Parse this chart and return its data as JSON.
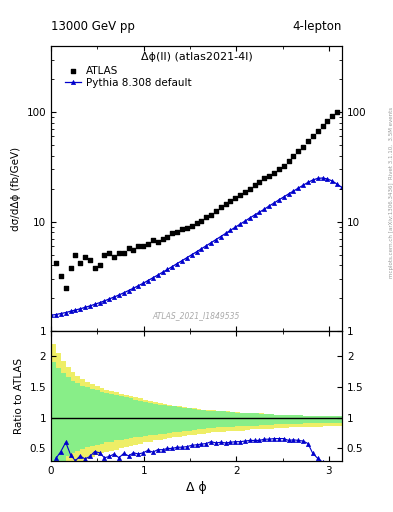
{
  "title_left": "13000 GeV pp",
  "title_right": "4-lepton",
  "subplot_title": "Δϕ(ll) (atlas2021-4l)",
  "watermark": "ATLAS_2021_I1849535",
  "right_label1": "Rivet 3.1.10,  3.5M events",
  "right_label2": "mcplots.cern.ch [arXiv:1306.3436]",
  "ylabel_main": "dσ/dΔϕ (fb/GeV)",
  "ylabel_ratio": "Ratio to ATLAS",
  "xlabel": "Δ ϕ",
  "xlim": [
    0,
    3.14159
  ],
  "ylim_main": [
    1.0,
    400
  ],
  "ylim_ratio": [
    0.3,
    2.4
  ],
  "atlas_x": [
    0.053,
    0.105,
    0.158,
    0.21,
    0.262,
    0.314,
    0.366,
    0.419,
    0.471,
    0.523,
    0.576,
    0.628,
    0.68,
    0.733,
    0.785,
    0.837,
    0.89,
    0.942,
    0.995,
    1.047,
    1.099,
    1.152,
    1.204,
    1.257,
    1.309,
    1.361,
    1.414,
    1.466,
    1.518,
    1.571,
    1.623,
    1.676,
    1.728,
    1.78,
    1.833,
    1.885,
    1.937,
    1.99,
    2.042,
    2.094,
    2.147,
    2.199,
    2.251,
    2.304,
    2.356,
    2.409,
    2.461,
    2.513,
    2.566,
    2.618,
    2.67,
    2.723,
    2.775,
    2.827,
    2.88,
    2.932,
    2.985,
    3.037,
    3.089
  ],
  "atlas_y": [
    4.2,
    3.2,
    2.5,
    3.8,
    5.0,
    4.2,
    4.8,
    4.5,
    3.8,
    4.0,
    5.0,
    5.2,
    4.8,
    5.2,
    5.2,
    5.8,
    5.5,
    6.0,
    6.0,
    6.2,
    6.8,
    6.5,
    7.0,
    7.2,
    7.8,
    8.0,
    8.5,
    8.8,
    9.2,
    9.8,
    10.2,
    11.0,
    11.5,
    12.5,
    13.5,
    14.5,
    15.5,
    16.5,
    17.5,
    18.8,
    20.0,
    21.5,
    23.0,
    25.0,
    26.0,
    28.0,
    30.0,
    32.0,
    36.0,
    40.0,
    44.0,
    48.0,
    54.0,
    60.0,
    67.0,
    74.0,
    82.0,
    92.0,
    100.0
  ],
  "pythia_x": [
    0.0,
    0.053,
    0.105,
    0.158,
    0.21,
    0.262,
    0.314,
    0.366,
    0.419,
    0.471,
    0.523,
    0.576,
    0.628,
    0.68,
    0.733,
    0.785,
    0.837,
    0.89,
    0.942,
    0.995,
    1.047,
    1.099,
    1.152,
    1.204,
    1.257,
    1.309,
    1.361,
    1.414,
    1.466,
    1.518,
    1.571,
    1.623,
    1.676,
    1.728,
    1.78,
    1.833,
    1.885,
    1.937,
    1.99,
    2.042,
    2.094,
    2.147,
    2.199,
    2.251,
    2.304,
    2.356,
    2.409,
    2.461,
    2.513,
    2.566,
    2.618,
    2.67,
    2.723,
    2.775,
    2.827,
    2.88,
    2.932,
    2.985,
    3.037,
    3.089,
    3.14159
  ],
  "pythia_y": [
    1.4,
    1.42,
    1.45,
    1.48,
    1.52,
    1.56,
    1.6,
    1.65,
    1.7,
    1.76,
    1.82,
    1.89,
    1.97,
    2.05,
    2.14,
    2.24,
    2.35,
    2.47,
    2.6,
    2.74,
    2.9,
    3.07,
    3.25,
    3.45,
    3.66,
    3.89,
    4.14,
    4.4,
    4.68,
    4.98,
    5.3,
    5.65,
    6.02,
    6.42,
    6.85,
    7.31,
    7.8,
    8.33,
    8.89,
    9.49,
    10.1,
    10.8,
    11.5,
    12.2,
    13.0,
    13.9,
    14.8,
    15.8,
    16.8,
    17.9,
    19.0,
    20.2,
    21.5,
    22.8,
    24.0,
    24.8,
    25.0,
    24.5,
    23.5,
    22.0,
    20.5
  ],
  "band_x_edges": [
    0.0,
    0.053,
    0.105,
    0.158,
    0.21,
    0.262,
    0.314,
    0.366,
    0.419,
    0.471,
    0.523,
    0.576,
    0.628,
    0.68,
    0.733,
    0.785,
    0.837,
    0.89,
    0.942,
    0.995,
    1.047,
    1.099,
    1.152,
    1.204,
    1.257,
    1.309,
    1.361,
    1.414,
    1.466,
    1.518,
    1.571,
    1.623,
    1.676,
    1.728,
    1.78,
    1.833,
    1.885,
    1.937,
    1.99,
    2.042,
    2.094,
    2.147,
    2.199,
    2.251,
    2.304,
    2.356,
    2.409,
    2.461,
    2.513,
    2.566,
    2.618,
    2.67,
    2.723,
    2.775,
    2.827,
    2.88,
    2.932,
    2.985,
    3.037,
    3.089,
    3.14159
  ],
  "band_green_upper": [
    1.9,
    1.8,
    1.72,
    1.65,
    1.6,
    1.56,
    1.52,
    1.49,
    1.46,
    1.44,
    1.42,
    1.4,
    1.38,
    1.37,
    1.35,
    1.33,
    1.31,
    1.29,
    1.27,
    1.26,
    1.24,
    1.22,
    1.21,
    1.2,
    1.19,
    1.18,
    1.17,
    1.16,
    1.15,
    1.14,
    1.13,
    1.12,
    1.11,
    1.11,
    1.1,
    1.1,
    1.09,
    1.09,
    1.08,
    1.08,
    1.07,
    1.07,
    1.07,
    1.06,
    1.06,
    1.06,
    1.05,
    1.05,
    1.05,
    1.04,
    1.04,
    1.04,
    1.03,
    1.03,
    1.03,
    1.03,
    1.02,
    1.02,
    1.02,
    1.02
  ],
  "band_green_lower": [
    0.15,
    0.22,
    0.3,
    0.37,
    0.42,
    0.46,
    0.49,
    0.52,
    0.54,
    0.56,
    0.58,
    0.6,
    0.61,
    0.63,
    0.64,
    0.65,
    0.67,
    0.68,
    0.69,
    0.7,
    0.71,
    0.72,
    0.73,
    0.74,
    0.75,
    0.76,
    0.77,
    0.78,
    0.79,
    0.8,
    0.81,
    0.82,
    0.83,
    0.83,
    0.84,
    0.84,
    0.85,
    0.85,
    0.86,
    0.86,
    0.87,
    0.87,
    0.87,
    0.88,
    0.88,
    0.88,
    0.89,
    0.89,
    0.89,
    0.9,
    0.9,
    0.9,
    0.91,
    0.91,
    0.91,
    0.91,
    0.92,
    0.92,
    0.92,
    0.92
  ],
  "band_yellow_upper": [
    2.2,
    2.05,
    1.92,
    1.82,
    1.74,
    1.68,
    1.63,
    1.58,
    1.54,
    1.51,
    1.48,
    1.45,
    1.43,
    1.41,
    1.39,
    1.37,
    1.35,
    1.33,
    1.31,
    1.29,
    1.27,
    1.25,
    1.23,
    1.22,
    1.2,
    1.19,
    1.18,
    1.17,
    1.16,
    1.15,
    1.14,
    1.13,
    1.12,
    1.12,
    1.11,
    1.1,
    1.1,
    1.09,
    1.09,
    1.08,
    1.08,
    1.07,
    1.07,
    1.07,
    1.06,
    1.06,
    1.05,
    1.05,
    1.05,
    1.04,
    1.04,
    1.04,
    1.03,
    1.03,
    1.03,
    1.03,
    1.02,
    1.02,
    1.02,
    1.02
  ],
  "band_yellow_lower": [
    0.0,
    0.05,
    0.1,
    0.15,
    0.2,
    0.25,
    0.29,
    0.33,
    0.36,
    0.39,
    0.42,
    0.44,
    0.46,
    0.48,
    0.5,
    0.52,
    0.54,
    0.56,
    0.58,
    0.6,
    0.61,
    0.63,
    0.64,
    0.65,
    0.67,
    0.68,
    0.69,
    0.7,
    0.71,
    0.72,
    0.73,
    0.74,
    0.75,
    0.76,
    0.77,
    0.77,
    0.78,
    0.78,
    0.79,
    0.79,
    0.8,
    0.81,
    0.81,
    0.82,
    0.82,
    0.82,
    0.83,
    0.83,
    0.83,
    0.84,
    0.84,
    0.84,
    0.85,
    0.85,
    0.85,
    0.85,
    0.86,
    0.86,
    0.86,
    0.86
  ],
  "ratio_x": [
    0.053,
    0.105,
    0.158,
    0.21,
    0.262,
    0.314,
    0.366,
    0.419,
    0.471,
    0.523,
    0.576,
    0.628,
    0.68,
    0.733,
    0.785,
    0.837,
    0.89,
    0.942,
    0.995,
    1.047,
    1.099,
    1.152,
    1.204,
    1.257,
    1.309,
    1.361,
    1.414,
    1.466,
    1.518,
    1.571,
    1.623,
    1.676,
    1.728,
    1.78,
    1.833,
    1.885,
    1.937,
    1.99,
    2.042,
    2.094,
    2.147,
    2.199,
    2.251,
    2.304,
    2.356,
    2.409,
    2.461,
    2.513,
    2.566,
    2.618,
    2.67,
    2.723,
    2.775,
    2.827,
    2.88,
    2.932,
    2.985,
    3.037,
    3.089
  ],
  "ratio_y": [
    0.34,
    0.45,
    0.6,
    0.4,
    0.3,
    0.38,
    0.33,
    0.37,
    0.45,
    0.43,
    0.35,
    0.37,
    0.41,
    0.35,
    0.42,
    0.38,
    0.43,
    0.41,
    0.43,
    0.47,
    0.44,
    0.48,
    0.48,
    0.5,
    0.5,
    0.52,
    0.52,
    0.53,
    0.55,
    0.56,
    0.57,
    0.58,
    0.61,
    0.59,
    0.6,
    0.59,
    0.6,
    0.61,
    0.61,
    0.62,
    0.63,
    0.63,
    0.63,
    0.65,
    0.65,
    0.66,
    0.66,
    0.66,
    0.63,
    0.64,
    0.63,
    0.62,
    0.58,
    0.42,
    0.34,
    0.28,
    0.23,
    0.2,
    0.2
  ],
  "atlas_color": "black",
  "pythia_color": "#0000cc",
  "green_band_color": "#88ee88",
  "yellow_band_color": "#eeee66",
  "background_color": "white",
  "main_yticks": [
    1,
    10,
    100
  ],
  "ratio_yticks": [
    0.5,
    1.0,
    1.5,
    2.0
  ],
  "ratio_ytick_labels": [
    "0.5",
    "1",
    "1.5",
    "2"
  ]
}
